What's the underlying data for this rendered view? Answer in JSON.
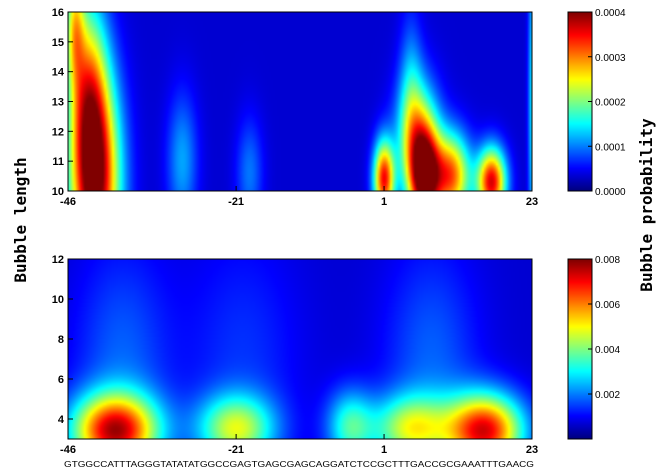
{
  "figure": {
    "ylabel": "Bubble length",
    "colorbar_label": "Bubble probability",
    "sequence": "GTGGCCATTTAGGGTATATATGGCCGAGTGAGCGAGCAGGATCTCCGCTTTGACCGCGAAATTTGAACG"
  },
  "chart_data": [
    {
      "type": "heatmap",
      "xlim": [
        -46,
        23
      ],
      "ylim": [
        10,
        16
      ],
      "x_ticks": [
        "-46",
        "-21",
        "1",
        "23"
      ],
      "y_ticks": [
        "10",
        "11",
        "12",
        "13",
        "14",
        "15",
        "16"
      ],
      "ylabel": "Bubble length",
      "colormap": "jet",
      "clim": [
        0,
        0.0004
      ],
      "colorbar_ticks": [
        "0.0000",
        "0.0001",
        "0.0002",
        "0.0003",
        "0.0004"
      ],
      "hotspots": [
        {
          "x": -42,
          "y": 10.3,
          "sigma_x": 2.6,
          "sigma_y": 2.5,
          "value": 0.0004
        },
        {
          "x": -43,
          "y": 13.5,
          "sigma_x": 2.0,
          "sigma_y": 2.2,
          "value": 0.0002
        },
        {
          "x": -45,
          "y": 15.6,
          "sigma_x": 1.0,
          "sigma_y": 1.4,
          "value": 0.00018
        },
        {
          "x": -29,
          "y": 11.0,
          "sigma_x": 1.6,
          "sigma_y": 1.6,
          "value": 9e-05
        },
        {
          "x": -19,
          "y": 10.6,
          "sigma_x": 1.4,
          "sigma_y": 1.3,
          "value": 7e-05
        },
        {
          "x": 1,
          "y": 10.4,
          "sigma_x": 1.1,
          "sigma_y": 0.9,
          "value": 0.00034
        },
        {
          "x": 7,
          "y": 10.4,
          "sigma_x": 1.6,
          "sigma_y": 1.2,
          "value": 0.00036
        },
        {
          "x": 6,
          "y": 11.8,
          "sigma_x": 2.2,
          "sigma_y": 1.4,
          "value": 0.0002
        },
        {
          "x": 11,
          "y": 10.5,
          "sigma_x": 2.0,
          "sigma_y": 1.0,
          "value": 0.0003
        },
        {
          "x": 17,
          "y": 10.3,
          "sigma_x": 1.5,
          "sigma_y": 0.8,
          "value": 0.00036
        },
        {
          "x": 5,
          "y": 13.4,
          "sigma_x": 1.2,
          "sigma_y": 1.8,
          "value": 8e-05
        },
        {
          "x": 23,
          "y": 13.0,
          "sigma_x": 0.4,
          "sigma_y": 4.0,
          "value": 0.00012
        }
      ]
    },
    {
      "type": "heatmap",
      "xlim": [
        -46,
        23
      ],
      "ylim": [
        3,
        12
      ],
      "x_ticks": [
        "-46",
        "-21",
        "1",
        "23"
      ],
      "y_ticks": [
        "4",
        "6",
        "8",
        "10",
        "12"
      ],
      "colormap": "jet",
      "clim": [
        0,
        0.008
      ],
      "colorbar_ticks": [
        "0.002",
        "0.004",
        "0.006",
        "0.008"
      ],
      "hotspots": [
        {
          "x": -39,
          "y": 3.4,
          "sigma_x": 4.5,
          "sigma_y": 1.3,
          "value": 0.007
        },
        {
          "x": -21,
          "y": 3.5,
          "sigma_x": 4.0,
          "sigma_y": 1.2,
          "value": 0.004
        },
        {
          "x": -4,
          "y": 3.6,
          "sigma_x": 2.5,
          "sigma_y": 1.3,
          "value": 0.003
        },
        {
          "x": 5,
          "y": 3.5,
          "sigma_x": 4.0,
          "sigma_y": 1.2,
          "value": 0.004
        },
        {
          "x": 16,
          "y": 3.4,
          "sigma_x": 4.0,
          "sigma_y": 1.3,
          "value": 0.007
        },
        {
          "x": -38,
          "y": 7.0,
          "sigma_x": 5.0,
          "sigma_y": 4.0,
          "value": 0.0012
        },
        {
          "x": 8,
          "y": 7.0,
          "sigma_x": 5.0,
          "sigma_y": 4.0,
          "value": 0.0012
        },
        {
          "x": -20,
          "y": 7.0,
          "sigma_x": 6.0,
          "sigma_y": 4.5,
          "value": 0.0008
        }
      ]
    }
  ]
}
